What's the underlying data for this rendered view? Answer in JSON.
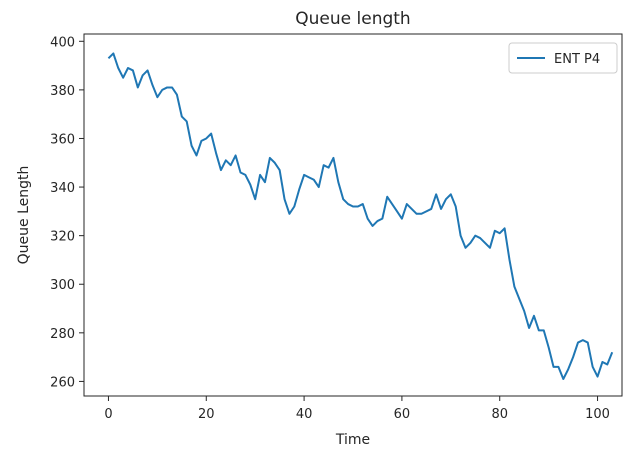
{
  "chart_data": {
    "type": "line",
    "title": "Queue length",
    "xlabel": "Time",
    "ylabel": "Queue Length",
    "xlim": [
      -5,
      105
    ],
    "ylim": [
      254,
      403
    ],
    "xticks": [
      0,
      20,
      40,
      60,
      80,
      100
    ],
    "yticks": [
      260,
      280,
      300,
      320,
      340,
      360,
      380,
      400
    ],
    "grid": false,
    "legend_position": "top-right",
    "series": [
      {
        "name": "ENT P4",
        "color": "#1f77b4",
        "x": [
          0,
          1,
          2,
          3,
          4,
          5,
          6,
          7,
          8,
          9,
          10,
          11,
          12,
          13,
          14,
          15,
          16,
          17,
          18,
          19,
          20,
          21,
          22,
          23,
          24,
          25,
          26,
          27,
          28,
          29,
          30,
          31,
          32,
          33,
          34,
          35,
          36,
          37,
          38,
          39,
          40,
          41,
          42,
          43,
          44,
          45,
          46,
          47,
          48,
          49,
          50,
          51,
          52,
          53,
          54,
          55,
          56,
          57,
          58,
          59,
          60,
          61,
          62,
          63,
          64,
          65,
          66,
          67,
          68,
          69,
          70,
          71,
          72,
          73,
          74,
          75,
          76,
          77,
          78,
          79,
          80,
          81,
          82,
          83,
          84,
          85,
          86,
          87,
          88,
          89,
          90,
          91,
          92,
          93,
          94,
          95,
          96,
          97,
          98,
          99,
          100,
          101,
          102,
          103
        ],
        "y": [
          393,
          395,
          389,
          385,
          389,
          388,
          381,
          386,
          388,
          382,
          377,
          380,
          381,
          381,
          378,
          369,
          367,
          357,
          353,
          359,
          360,
          362,
          354,
          347,
          351,
          349,
          353,
          346,
          345,
          341,
          335,
          345,
          342,
          352,
          350,
          347,
          335,
          329,
          332,
          339,
          345,
          344,
          343,
          340,
          349,
          348,
          352,
          342,
          335,
          333,
          332,
          332,
          333,
          327,
          324,
          326,
          327,
          336,
          333,
          330,
          327,
          333,
          331,
          329,
          329,
          330,
          331,
          337,
          331,
          335,
          337,
          332,
          320,
          315,
          317,
          320,
          319,
          317,
          315,
          322,
          321,
          323,
          310,
          299,
          294,
          289,
          282,
          287,
          281,
          281,
          274,
          266,
          266,
          261,
          265,
          270,
          276,
          277,
          276,
          266,
          262,
          268,
          267,
          272
        ]
      }
    ]
  }
}
